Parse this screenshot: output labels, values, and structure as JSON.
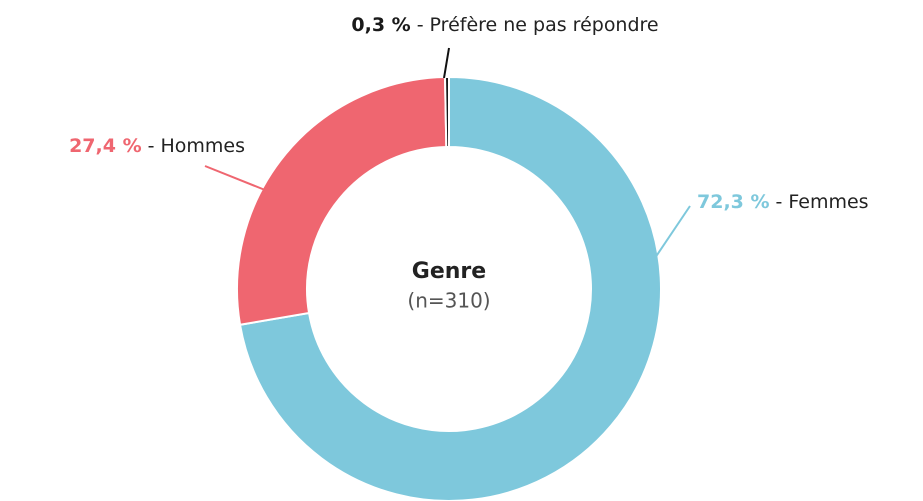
{
  "chart_data": {
    "type": "donut",
    "title": "Genre",
    "subtitle": "(n=310)",
    "categories": [
      "Femmes",
      "Hommes",
      "Préfère ne pas répondre"
    ],
    "values": [
      72.3,
      27.4,
      0.3
    ],
    "value_labels": [
      "72,3 %",
      "27,4 %",
      "0,3 %"
    ],
    "separator": "-",
    "colors": [
      "#7ec8dc",
      "#ef6670",
      "#1a1a1a"
    ]
  }
}
